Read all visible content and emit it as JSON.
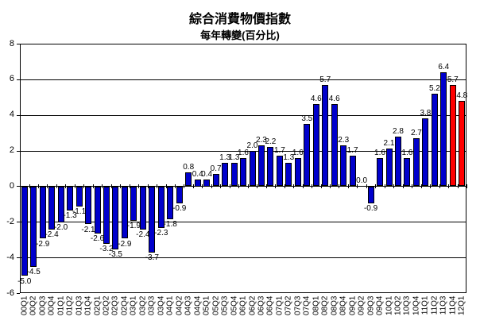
{
  "chart_data": {
    "type": "bar",
    "title": "綜合消費物價指數",
    "subtitle": "每年轉變(百分比)",
    "categories": [
      "00Q1",
      "00Q2",
      "00Q3",
      "00Q4",
      "01Q1",
      "01Q2",
      "01Q3",
      "01Q4",
      "02Q1",
      "02Q2",
      "02Q3",
      "02Q4",
      "03Q1",
      "03Q2",
      "03Q3",
      "03Q4",
      "04Q1",
      "04Q2",
      "04Q3",
      "04Q4",
      "05Q1",
      "05Q2",
      "05Q3",
      "05Q4",
      "06Q1",
      "06Q2",
      "06Q3",
      "06Q4",
      "07Q1",
      "07Q2",
      "07Q3",
      "07Q4",
      "08Q1",
      "08Q2",
      "08Q3",
      "08Q4",
      "09Q1",
      "09Q2",
      "09Q3",
      "09Q4",
      "10Q1",
      "10Q2",
      "10Q3",
      "10Q4",
      "11Q1",
      "11Q2",
      "11Q3",
      "11Q4",
      "12Q1"
    ],
    "values": [
      -5.0,
      -4.5,
      -2.9,
      -2.4,
      -2.0,
      -1.3,
      -1.1,
      -2.1,
      -2.6,
      -3.2,
      -3.5,
      -2.9,
      -1.9,
      -2.4,
      -3.7,
      -2.3,
      -1.8,
      -0.9,
      0.8,
      0.4,
      0.4,
      0.7,
      1.3,
      1.3,
      1.6,
      2.0,
      2.3,
      2.2,
      1.7,
      1.3,
      1.6,
      3.5,
      4.6,
      5.7,
      4.6,
      2.3,
      1.7,
      0.0,
      -0.9,
      1.6,
      2.1,
      2.8,
      1.6,
      2.7,
      3.8,
      5.2,
      6.4,
      5.7,
      4.8
    ],
    "highlight_categories": [
      "11Q4",
      "12Q1"
    ],
    "value_labels": true,
    "ylim": [
      -6,
      8
    ],
    "yticks": [
      8,
      6,
      4,
      2,
      0,
      -2,
      -4,
      -6
    ],
    "grid": true,
    "legend": "none",
    "colors": {
      "bar": "#0000CC",
      "highlight": "#FF0000",
      "axis": "#000000"
    }
  }
}
